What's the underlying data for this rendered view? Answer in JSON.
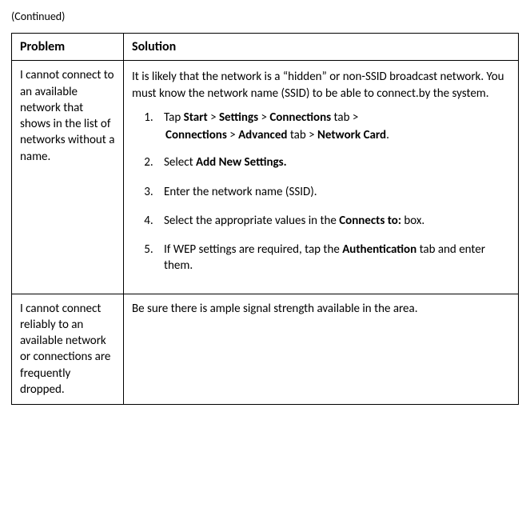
{
  "continued_label": "(Continued)",
  "headers": {
    "problem": "Problem",
    "solution": "Solution"
  },
  "row1": {
    "problem": "I cannot connect to an available network that shows in the list of networks without a name.",
    "intro": "It is likely that the network is a “hidden” or non-SSID broadcast network. You must know the network name (SSID) to be able to connect.by the system.",
    "step1": {
      "t01": "Tap ",
      "b01": "Start",
      "t02": " > ",
      "b02": "Settings",
      "t03": " > ",
      "b03": "Connections",
      "t04": " tab > ",
      "b04": "Connections",
      "t05": " > ",
      "b05": "Advanced",
      "t06": " tab > ",
      "b06": "Network Card",
      "t07": "."
    },
    "step2": {
      "t01": "Select ",
      "b01": "Add New Settings."
    },
    "step3": {
      "t01": "Enter the network name (SSID)."
    },
    "step4": {
      "t01": "Select the appropriate values in the ",
      "b01": "Connects to:",
      "t02": " box."
    },
    "step5": {
      "t01": "If WEP settings are required, tap the ",
      "b01": "Authentication",
      "t02": " tab and enter them."
    }
  },
  "row2": {
    "problem": "I cannot connect reliably to an available network or connections are frequently dropped.",
    "solution": "Be sure there is ample signal strength available in the area."
  }
}
